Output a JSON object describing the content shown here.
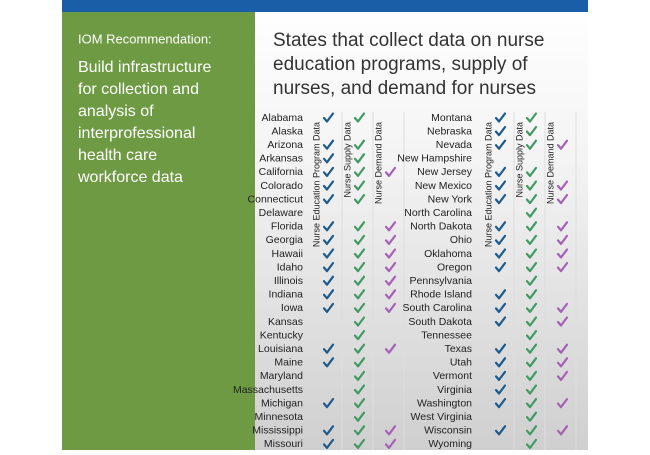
{
  "panel": {
    "label": "IOM Recommendation:",
    "text": [
      "Build infrastructure",
      "for collection and",
      "analysis of",
      "interprofessional",
      "health care",
      "workforce data"
    ]
  },
  "title": [
    "States that collect data on nurse",
    "education programs, supply of",
    "nurses, and demand for nurses"
  ],
  "table": {
    "columns": [
      "Nurse Education Program Data",
      "Nurse Supply Data",
      "Nurse Demand Data"
    ],
    "left": [
      {
        "state": "Alabama",
        "checks": [
          true,
          true,
          false
        ]
      },
      {
        "state": "Alaska",
        "checks": [
          false,
          false,
          false
        ]
      },
      {
        "state": "Arizona",
        "checks": [
          true,
          true,
          false
        ]
      },
      {
        "state": "Arkansas",
        "checks": [
          true,
          true,
          false
        ]
      },
      {
        "state": "California",
        "checks": [
          true,
          true,
          true
        ]
      },
      {
        "state": "Colorado",
        "checks": [
          true,
          true,
          false
        ]
      },
      {
        "state": "Connecticut",
        "checks": [
          true,
          true,
          false
        ]
      },
      {
        "state": "Delaware",
        "checks": [
          false,
          false,
          false
        ]
      },
      {
        "state": "Florida",
        "checks": [
          true,
          true,
          true
        ]
      },
      {
        "state": "Georgia",
        "checks": [
          true,
          true,
          true
        ]
      },
      {
        "state": "Hawaii",
        "checks": [
          true,
          true,
          true
        ]
      },
      {
        "state": "Idaho",
        "checks": [
          true,
          true,
          true
        ]
      },
      {
        "state": "Illinois",
        "checks": [
          true,
          true,
          true
        ]
      },
      {
        "state": "Indiana",
        "checks": [
          true,
          true,
          true
        ]
      },
      {
        "state": "Iowa",
        "checks": [
          true,
          true,
          true
        ]
      },
      {
        "state": "Kansas",
        "checks": [
          false,
          true,
          false
        ]
      },
      {
        "state": "Kentucky",
        "checks": [
          false,
          true,
          false
        ]
      },
      {
        "state": "Louisiana",
        "checks": [
          true,
          true,
          true
        ]
      },
      {
        "state": "Maine",
        "checks": [
          true,
          true,
          false
        ]
      },
      {
        "state": "Maryland",
        "checks": [
          false,
          true,
          false
        ]
      },
      {
        "state": "Massachusetts",
        "checks": [
          false,
          true,
          false
        ]
      },
      {
        "state": "Michigan",
        "checks": [
          true,
          true,
          false
        ]
      },
      {
        "state": "Minnesota",
        "checks": [
          false,
          true,
          false
        ]
      },
      {
        "state": "Mississippi",
        "checks": [
          true,
          true,
          true
        ]
      },
      {
        "state": "Missouri",
        "checks": [
          true,
          true,
          true
        ]
      }
    ],
    "right": [
      {
        "state": "Montana",
        "checks": [
          true,
          true,
          false
        ]
      },
      {
        "state": "Nebraska",
        "checks": [
          true,
          true,
          false
        ]
      },
      {
        "state": "Nevada",
        "checks": [
          true,
          true,
          true
        ]
      },
      {
        "state": "New Hampshire",
        "checks": [
          false,
          false,
          false
        ]
      },
      {
        "state": "New Jersey",
        "checks": [
          true,
          true,
          false
        ]
      },
      {
        "state": "New Mexico",
        "checks": [
          true,
          true,
          true
        ]
      },
      {
        "state": "New York",
        "checks": [
          true,
          true,
          true
        ]
      },
      {
        "state": "North Carolina",
        "checks": [
          false,
          true,
          false
        ]
      },
      {
        "state": "North Dakota",
        "checks": [
          true,
          true,
          true
        ]
      },
      {
        "state": "Ohio",
        "checks": [
          true,
          true,
          true
        ]
      },
      {
        "state": "Oklahoma",
        "checks": [
          true,
          true,
          true
        ]
      },
      {
        "state": "Oregon",
        "checks": [
          true,
          true,
          true
        ]
      },
      {
        "state": "Pennsylvania",
        "checks": [
          false,
          true,
          false
        ]
      },
      {
        "state": "Rhode Island",
        "checks": [
          true,
          true,
          false
        ]
      },
      {
        "state": "South Carolina",
        "checks": [
          true,
          true,
          true
        ]
      },
      {
        "state": "South Dakota",
        "checks": [
          true,
          true,
          true
        ]
      },
      {
        "state": "Tennessee",
        "checks": [
          false,
          true,
          false
        ]
      },
      {
        "state": "Texas",
        "checks": [
          true,
          true,
          true
        ]
      },
      {
        "state": "Utah",
        "checks": [
          true,
          true,
          true
        ]
      },
      {
        "state": "Vermont",
        "checks": [
          true,
          true,
          true
        ]
      },
      {
        "state": "Virginia",
        "checks": [
          true,
          true,
          false
        ]
      },
      {
        "state": "Washington",
        "checks": [
          true,
          true,
          true
        ]
      },
      {
        "state": "West Virginia",
        "checks": [
          false,
          true,
          false
        ]
      },
      {
        "state": "Wisconsin",
        "checks": [
          true,
          true,
          true
        ]
      },
      {
        "state": "Wyoming",
        "checks": [
          false,
          true,
          false
        ]
      }
    ]
  }
}
